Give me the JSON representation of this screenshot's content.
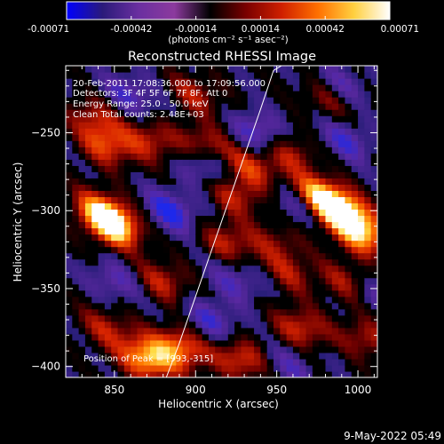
{
  "chart_data": {
    "type": "heatmap",
    "title": "Reconstructed RHESSI Image",
    "xlabel": "Heliocentric X (arcsec)",
    "ylabel": "Heliocentric Y (arcsec)",
    "xlim": [
      820,
      1012
    ],
    "ylim": [
      -407,
      -207
    ],
    "x_ticks": [
      850,
      900,
      950,
      1000
    ],
    "y_ticks": [
      -250,
      -300,
      -350,
      -400
    ],
    "colorbar": {
      "range": [
        -0.00071,
        0.00071
      ],
      "ticks": [
        "-0.00071",
        "-0.00042",
        "-0.00014",
        "0.00014",
        "0.00042",
        "0.00071"
      ],
      "units": "(photons cm⁻² s⁻¹ asec⁻²)",
      "colors": [
        "#0000ff",
        "#2a1a7a",
        "#6a2fa0",
        "#8c3a9e",
        "#000000",
        "#7a0000",
        "#d02000",
        "#ff7000",
        "#ffd040",
        "#ffffff"
      ]
    },
    "annotations": [
      "20-Feb-2011 17:08:36.000 to 17:09:56.000",
      "Detectors: 3F 4F 5F 6F 7F 8F, Att 0",
      "Energy Range: 25.0 - 50.0 keV",
      "Clean     Total counts: 2.48E+03",
      "Position of Peak = [993,-315]"
    ],
    "peak": [
      993,
      -315
    ],
    "limb_curve": {
      "x": [
        882,
        890,
        900,
        910,
        920,
        930,
        940,
        948,
        953
      ],
      "y": [
        -407,
        -385,
        -355,
        -325,
        -295,
        -265,
        -235,
        -210,
        -207
      ]
    },
    "blobs": [
      {
        "x": 990,
        "y": -300,
        "v": 1.0
      },
      {
        "x": 1003,
        "y": -315,
        "v": 0.8
      },
      {
        "x": 850,
        "y": -310,
        "v": 0.9
      },
      {
        "x": 842,
        "y": -300,
        "v": 0.7
      },
      {
        "x": 870,
        "y": -395,
        "v": 0.85
      },
      {
        "x": 890,
        "y": -388,
        "v": 0.7
      },
      {
        "x": 975,
        "y": -290,
        "v": 0.8
      },
      {
        "x": 928,
        "y": -395,
        "v": 0.55
      },
      {
        "x": 845,
        "y": -258,
        "v": 0.55
      },
      {
        "x": 838,
        "y": -240,
        "v": 0.4
      },
      {
        "x": 872,
        "y": -255,
        "v": 0.45
      },
      {
        "x": 905,
        "y": -258,
        "v": 0.5
      },
      {
        "x": 935,
        "y": -272,
        "v": 0.5
      },
      {
        "x": 925,
        "y": -290,
        "v": 0.45
      },
      {
        "x": 958,
        "y": -262,
        "v": 0.45
      },
      {
        "x": 880,
        "y": -345,
        "v": 0.45
      },
      {
        "x": 920,
        "y": -320,
        "v": 0.45
      },
      {
        "x": 958,
        "y": -340,
        "v": 0.35
      },
      {
        "x": 995,
        "y": -345,
        "v": 0.45
      },
      {
        "x": 965,
        "y": -375,
        "v": 0.5
      },
      {
        "x": 900,
        "y": -225,
        "v": 0.4
      },
      {
        "x": 982,
        "y": -228,
        "v": 0.35
      },
      {
        "x": 845,
        "y": -375,
        "v": 0.4
      },
      {
        "x": 1005,
        "y": -382,
        "v": 0.4
      },
      {
        "x": 950,
        "y": -320,
        "v": 0.3
      },
      {
        "x": 860,
        "y": -225,
        "v": -0.4
      },
      {
        "x": 885,
        "y": -300,
        "v": -0.55
      },
      {
        "x": 905,
        "y": -270,
        "v": -0.45
      },
      {
        "x": 940,
        "y": -250,
        "v": -0.5
      },
      {
        "x": 962,
        "y": -295,
        "v": -0.4
      },
      {
        "x": 925,
        "y": -345,
        "v": -0.35
      },
      {
        "x": 993,
        "y": -255,
        "v": -0.4
      },
      {
        "x": 1010,
        "y": -350,
        "v": -0.35
      },
      {
        "x": 850,
        "y": -345,
        "v": -0.35
      },
      {
        "x": 958,
        "y": -400,
        "v": -0.3
      },
      {
        "x": 910,
        "y": -370,
        "v": -0.4
      },
      {
        "x": 990,
        "y": -220,
        "v": -0.35
      }
    ]
  },
  "footer": {
    "timestamp": "9-May-2022 05:49"
  }
}
